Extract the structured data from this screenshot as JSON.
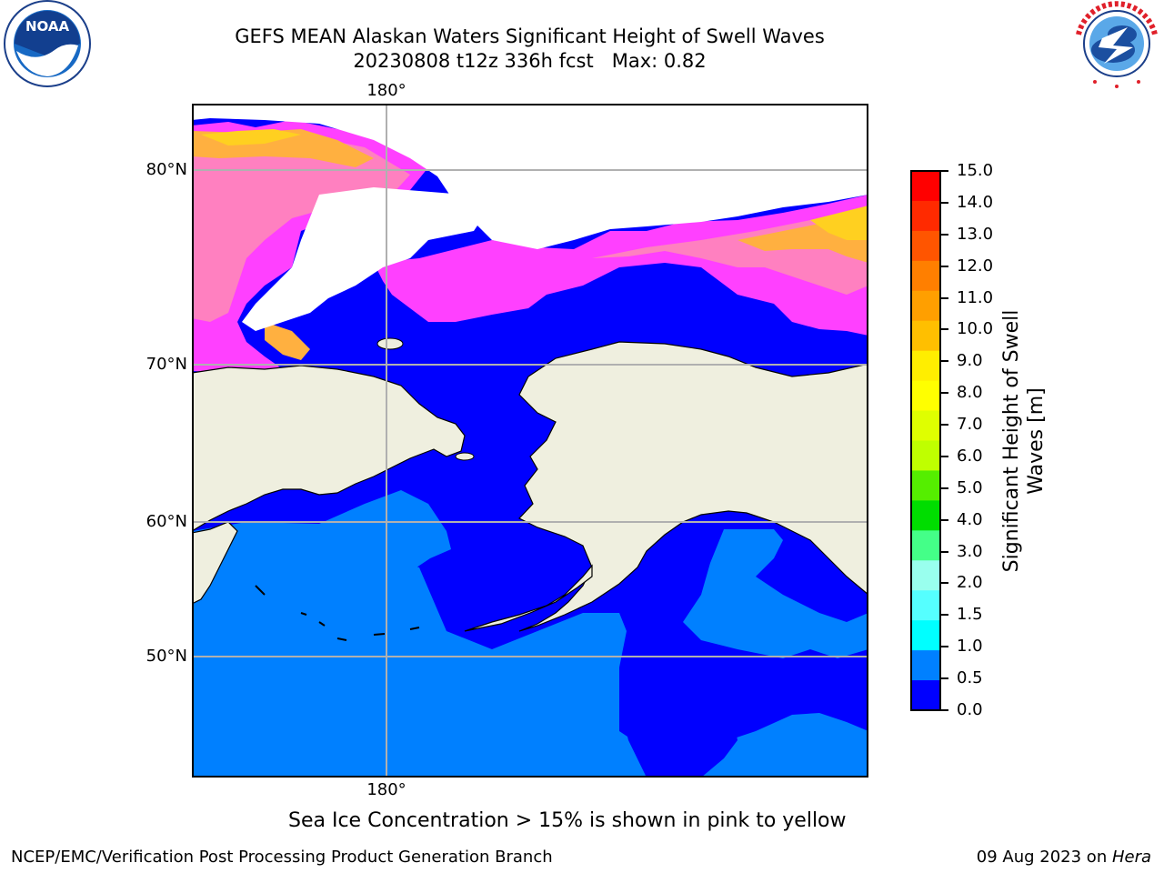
{
  "header": {
    "title_line1": "GEFS MEAN Alaskan Waters Significant Height of Swell Waves",
    "title_line2": "20230808 t12z 336h fcst   Max: 0.82"
  },
  "logos": {
    "left": {
      "name": "noaa-logo",
      "text": "NOAA",
      "ring_text": "NATIONAL OCEANIC AND ATMOSPHERIC ADMINISTRATION · U.S. DEPARTMENT OF COMMERCE"
    },
    "right": {
      "name": "nws-logo",
      "ring_text": "NATIONAL WEATHER SERVICE"
    }
  },
  "map": {
    "lon_top": "180°",
    "lon_bottom": "180°",
    "lat_labels": [
      "80°N",
      "70°N",
      "60°N",
      "50°N"
    ],
    "colors": {
      "deep_blue": "#0000ff",
      "light_blue": "#0080ff",
      "land": "#efefdf",
      "ice_pink": "#ff40ff",
      "ice_salmon": "#ff80c0",
      "ice_orange": "#ffb040",
      "ice_yellow": "#ffd020",
      "grid": "#b0b0b0"
    }
  },
  "colorbar": {
    "label": "Significant Height of Swell Waves [m]",
    "label_line1": "Significant Height of Swell",
    "label_line2": "Waves [m]",
    "ticks": [
      "15.0",
      "14.0",
      "13.0",
      "12.0",
      "11.0",
      "10.0",
      "9.0",
      "8.0",
      "7.0",
      "6.0",
      "5.0",
      "4.0",
      "3.0",
      "2.0",
      "1.5",
      "1.0",
      "0.5",
      "0.0"
    ],
    "colors_top_to_bottom": [
      "#ff0000",
      "#ff2a00",
      "#ff5500",
      "#ff7f00",
      "#ff9f00",
      "#ffbf00",
      "#ffee00",
      "#ffff00",
      "#dfff00",
      "#bfff00",
      "#55ee00",
      "#00dd00",
      "#44ff88",
      "#99ffee",
      "#55ffff",
      "#00ffff",
      "#0080ff",
      "#0000ff"
    ]
  },
  "note": "Sea Ice Concentration > 15% is shown in pink to yellow",
  "footer": {
    "left": "NCEP/EMC/Verification Post Processing Product Generation Branch",
    "date": "09 Aug 2023 on ",
    "machine": "Hera"
  }
}
